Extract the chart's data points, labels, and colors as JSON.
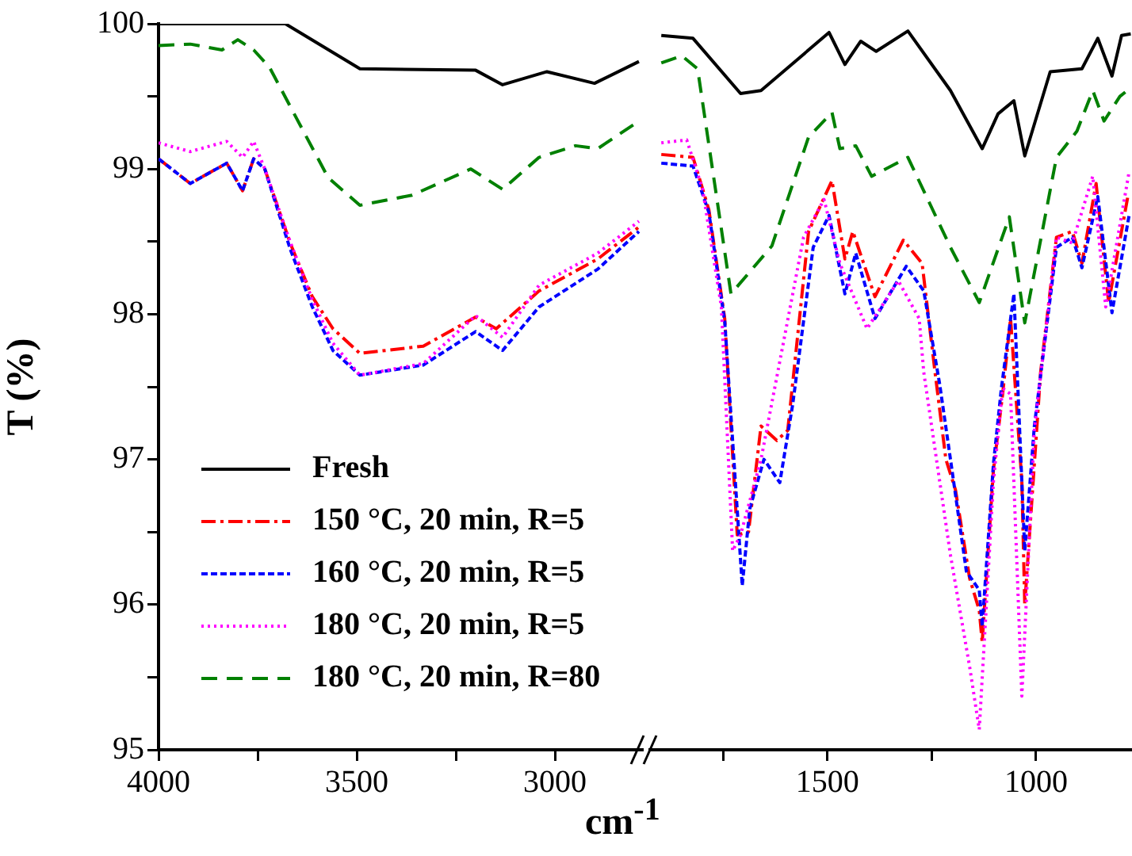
{
  "chart_data": [
    {
      "type": "line",
      "ylabel": "T (%)",
      "legend": "bottom left",
      "grid": false,
      "marker": "none",
      "tick_labels": "xy",
      "xlim": [
        4000,
        2780
      ],
      "xticks": [
        4000,
        {
          "value": 3750,
          "label": null
        },
        3500,
        {
          "value": 3250,
          "label": null
        },
        3000
      ],
      "ylim": [
        95,
        100
      ],
      "yticks": [
        95,
        {
          "value": 95.5,
          "label": null
        },
        96,
        {
          "value": 96.5,
          "label": null
        },
        97,
        {
          "value": 97.5,
          "label": null
        },
        98,
        {
          "value": 98.5,
          "label": null
        },
        99,
        {
          "value": 99.5,
          "label": null
        },
        100
      ],
      "series": [
        {
          "name": "Fresh",
          "color": "#000000",
          "line_style": "solid",
          "x": [
            4000,
            3680,
            3492,
            3200,
            3132,
            3020,
            2900,
            2788
          ],
          "values": [
            100.0,
            100.0,
            99.69,
            99.68,
            99.58,
            99.67,
            99.59,
            99.74
          ]
        },
        {
          "name": "150 °C, 20 min, R=5",
          "color": "#ff0000",
          "line_style": "dashdot",
          "x": [
            4000,
            3920,
            3828,
            3788,
            3760,
            3732,
            3668,
            3612,
            3560,
            3492,
            3332,
            3200,
            3148,
            3040,
            2892,
            2788
          ],
          "values": [
            99.07,
            98.9,
            99.04,
            98.85,
            99.07,
            99.0,
            98.49,
            98.12,
            97.9,
            97.73,
            97.78,
            97.98,
            97.9,
            98.16,
            98.38,
            98.6
          ]
        },
        {
          "name": "160 °C, 20 min, R=5",
          "color": "#0000ff",
          "line_style": "dashed",
          "x": [
            4000,
            3920,
            3828,
            3788,
            3760,
            3732,
            3668,
            3612,
            3560,
            3492,
            3332,
            3200,
            3132,
            3040,
            2892,
            2788
          ],
          "values": [
            99.07,
            98.9,
            99.04,
            98.85,
            99.07,
            99.0,
            98.45,
            98.05,
            97.75,
            97.58,
            97.65,
            97.88,
            97.75,
            98.05,
            98.31,
            98.57
          ]
        },
        {
          "name": "180 °C, 20 min, R=5",
          "color": "#ff00ff",
          "line_style": "dotted",
          "x": [
            4000,
            3920,
            3828,
            3788,
            3760,
            3732,
            3668,
            3612,
            3560,
            3492,
            3332,
            3200,
            3132,
            3040,
            2892,
            2788
          ],
          "values": [
            99.18,
            99.12,
            99.19,
            99.08,
            99.19,
            99.0,
            98.5,
            98.1,
            97.8,
            97.58,
            97.66,
            97.99,
            97.84,
            98.2,
            98.42,
            98.64
          ]
        },
        {
          "name": "180 °C, 20 min, R=80",
          "color": "#008000",
          "line_style": "longdash",
          "x": [
            4000,
            3920,
            3840,
            3800,
            3760,
            3720,
            3652,
            3572,
            3492,
            3360,
            3212,
            3132,
            3040,
            2948,
            2892,
            2788
          ],
          "values": [
            99.85,
            99.86,
            99.82,
            99.89,
            99.82,
            99.7,
            99.35,
            98.94,
            98.75,
            98.82,
            99.0,
            98.86,
            99.08,
            99.16,
            99.14,
            99.33
          ]
        }
      ]
    },
    {
      "type": "line",
      "xlabel": "cm$^{-1}$",
      "grid": false,
      "marker": "none",
      "tick_labels": "x",
      "xlim": [
        1925,
        770
      ],
      "xticks": [
        {
          "value": 1750,
          "label": null
        },
        1500,
        {
          "value": 1250,
          "label": null
        },
        1000
      ],
      "ylim": [
        95,
        100
      ],
      "series": [
        {
          "color": "#000000",
          "line_style": "solid",
          "x": [
            1898,
            1822,
            1708,
            1659,
            1496,
            1458,
            1420,
            1383,
            1307,
            1205,
            1129,
            1091,
            1053,
            1027,
            966,
            890,
            852,
            818,
            795,
            773
          ],
          "values": [
            99.92,
            99.9,
            99.52,
            99.54,
            99.94,
            99.72,
            99.88,
            99.81,
            99.95,
            99.54,
            99.14,
            99.38,
            99.47,
            99.09,
            99.67,
            99.69,
            99.9,
            99.64,
            99.92,
            99.93
          ]
        },
        {
          "color": "#ff0000",
          "line_style": "dashdot",
          "x": [
            1898,
            1822,
            1784,
            1746,
            1716,
            1689,
            1659,
            1621,
            1595,
            1545,
            1489,
            1458,
            1439,
            1386,
            1318,
            1273,
            1242,
            1216,
            1193,
            1159,
            1136,
            1129,
            1102,
            1080,
            1061,
            1034,
            1027,
            989,
            951,
            913,
            890,
            856,
            826,
            780
          ],
          "values": [
            99.1,
            99.08,
            98.72,
            97.97,
            96.48,
            96.5,
            97.23,
            97.13,
            97.2,
            98.57,
            98.92,
            98.38,
            98.57,
            98.12,
            98.51,
            98.35,
            97.6,
            97.0,
            96.79,
            96.18,
            95.96,
            95.74,
            96.93,
            97.45,
            97.97,
            96.85,
            96.0,
            97.6,
            98.53,
            98.57,
            98.35,
            98.9,
            98.08,
            98.81
          ]
        },
        {
          "color": "#0000ff",
          "line_style": "dashed",
          "x": [
            1898,
            1822,
            1784,
            1746,
            1704,
            1686,
            1652,
            1614,
            1583,
            1534,
            1496,
            1458,
            1432,
            1386,
            1311,
            1269,
            1231,
            1205,
            1167,
            1136,
            1129,
            1102,
            1083,
            1053,
            1027,
            1004,
            951,
            913,
            890,
            852,
            818,
            777
          ],
          "values": [
            99.04,
            99.02,
            98.7,
            97.95,
            96.13,
            96.66,
            97.0,
            96.84,
            97.38,
            98.46,
            98.68,
            98.14,
            98.42,
            97.97,
            98.33,
            98.16,
            97.52,
            97.0,
            96.23,
            96.1,
            95.85,
            96.97,
            97.49,
            98.14,
            96.37,
            97.23,
            98.46,
            98.53,
            98.32,
            98.81,
            98.01,
            98.68
          ]
        },
        {
          "color": "#ff00ff",
          "line_style": "dotted",
          "x": [
            1898,
            1837,
            1799,
            1754,
            1727,
            1708,
            1659,
            1557,
            1508,
            1470,
            1405,
            1330,
            1280,
            1269,
            1205,
            1159,
            1136,
            1102,
            1080,
            1061,
            1034,
            1004,
            951,
            913,
            864,
            833,
            777
          ],
          "values": [
            99.18,
            99.2,
            98.86,
            98.05,
            96.37,
            96.48,
            97.0,
            98.53,
            98.79,
            98.35,
            97.9,
            98.23,
            97.97,
            97.6,
            96.34,
            95.57,
            95.14,
            96.85,
            97.49,
            97.45,
            95.37,
            97.2,
            98.53,
            98.49,
            98.95,
            98.05,
            98.98
          ]
        },
        {
          "color": "#008000",
          "line_style": "longdash",
          "x": [
            1898,
            1849,
            1811,
            1731,
            1633,
            1545,
            1489,
            1470,
            1432,
            1394,
            1307,
            1205,
            1136,
            1064,
            1027,
            951,
            902,
            864,
            837,
            799,
            777
          ],
          "values": [
            99.73,
            99.78,
            99.69,
            98.14,
            98.47,
            99.22,
            99.39,
            99.14,
            99.16,
            98.95,
            99.08,
            98.46,
            98.08,
            98.67,
            97.94,
            99.08,
            99.26,
            99.54,
            99.33,
            99.5,
            99.55
          ]
        }
      ]
    }
  ]
}
